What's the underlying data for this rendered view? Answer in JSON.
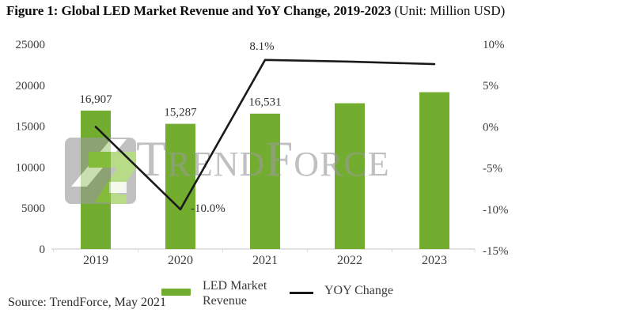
{
  "title": {
    "main": "Figure 1: Global LED Market Revenue and YoY Change, 2019-2023",
    "unit": " (Unit: Million USD)"
  },
  "watermark": {
    "text": "TrendForce"
  },
  "legend": {
    "revenue_label": "LED Market Revenue",
    "yoy_label": "YOY Change"
  },
  "source": "Source: TrendForce, May 2021",
  "colors": {
    "bar_green": "#73ad2f",
    "line_black": "#1a1a1a",
    "baseline_gray": "#d9d9d9",
    "watermark_gray": "#9a9a9a",
    "logo_green": "#8dc63f",
    "logo_gray": "#9c9c9c"
  },
  "chart_data": {
    "type": "bar",
    "categories": [
      "2019",
      "2020",
      "2021",
      "2022",
      "2023"
    ],
    "series": [
      {
        "name": "LED Market Revenue",
        "type": "bar",
        "axis": "left",
        "values": [
          16907,
          15287,
          16531,
          17800,
          19150
        ],
        "data_labels": [
          "16,907",
          "15,287",
          "16,531",
          null,
          null
        ],
        "color": "#73ad2f"
      },
      {
        "name": "YOY Change",
        "type": "line",
        "axis": "right",
        "values": [
          0.0,
          -10.0,
          8.1,
          7.9,
          7.6
        ],
        "data_labels": [
          null,
          "-10.0%",
          "8.1%",
          null,
          null
        ],
        "color": "#1a1a1a"
      }
    ],
    "title": "Figure 1: Global LED Market Revenue and YoY Change, 2019-2023",
    "unit": "Million USD",
    "xlabel": "",
    "ylabel_left": "",
    "ylabel_right": "",
    "left_axis": {
      "min": 0,
      "max": 25000,
      "step": 5000,
      "ticks": [
        "0",
        "5000",
        "10000",
        "15000",
        "20000",
        "25000"
      ]
    },
    "right_axis": {
      "min": -15,
      "max": 10,
      "step": 5,
      "ticks": [
        "-15%",
        "-10%",
        "-5%",
        "0%",
        "5%",
        "10%"
      ]
    },
    "grid": false,
    "legend_position": "bottom"
  }
}
